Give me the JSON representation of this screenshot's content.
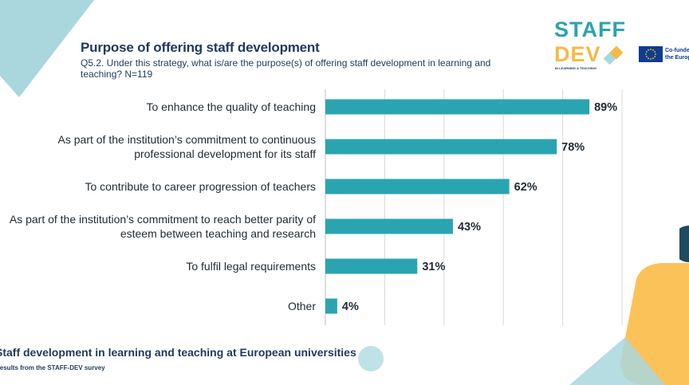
{
  "header": {
    "title": "Purpose of offering staff development",
    "subtitle": "Q5.2. Under this strategy, what is/are the purpose(s) of offering staff development in learning and teaching? N=119"
  },
  "logo": {
    "line1": "STAFF",
    "line2": "DEV",
    "tagline": "IN LEARNING & TEACHING",
    "eu_text_line1": "Co-funded by",
    "eu_text_line2": "the European Union"
  },
  "footer": {
    "title": "Staff development in learning and teaching at European universities",
    "subtitle": "Results from the STAFF-DEV survey"
  },
  "colors": {
    "bar": "#2ba4b1",
    "title": "#1e3a5f",
    "teal_light": "#a9d7dd",
    "orange": "#fcc25a"
  },
  "chart_data": {
    "type": "bar",
    "orientation": "horizontal",
    "categories": [
      [
        "To enhance the quality of teaching"
      ],
      [
        "As part of the institution’s commitment to continuous",
        "professional development for its staff"
      ],
      [
        "To contribute to career progression of teachers"
      ],
      [
        "As part of the institution’s commitment to reach better parity of",
        "esteem between teaching and research"
      ],
      [
        "To fulfil legal requirements"
      ],
      [
        "Other"
      ]
    ],
    "values": [
      89,
      78,
      62,
      43,
      31,
      4
    ],
    "value_labels": [
      "89%",
      "78%",
      "62%",
      "43%",
      "31%",
      "4%"
    ],
    "unit": "%",
    "xlim": [
      0,
      100
    ],
    "grid": true,
    "title": "",
    "xlabel": "",
    "ylabel": ""
  }
}
